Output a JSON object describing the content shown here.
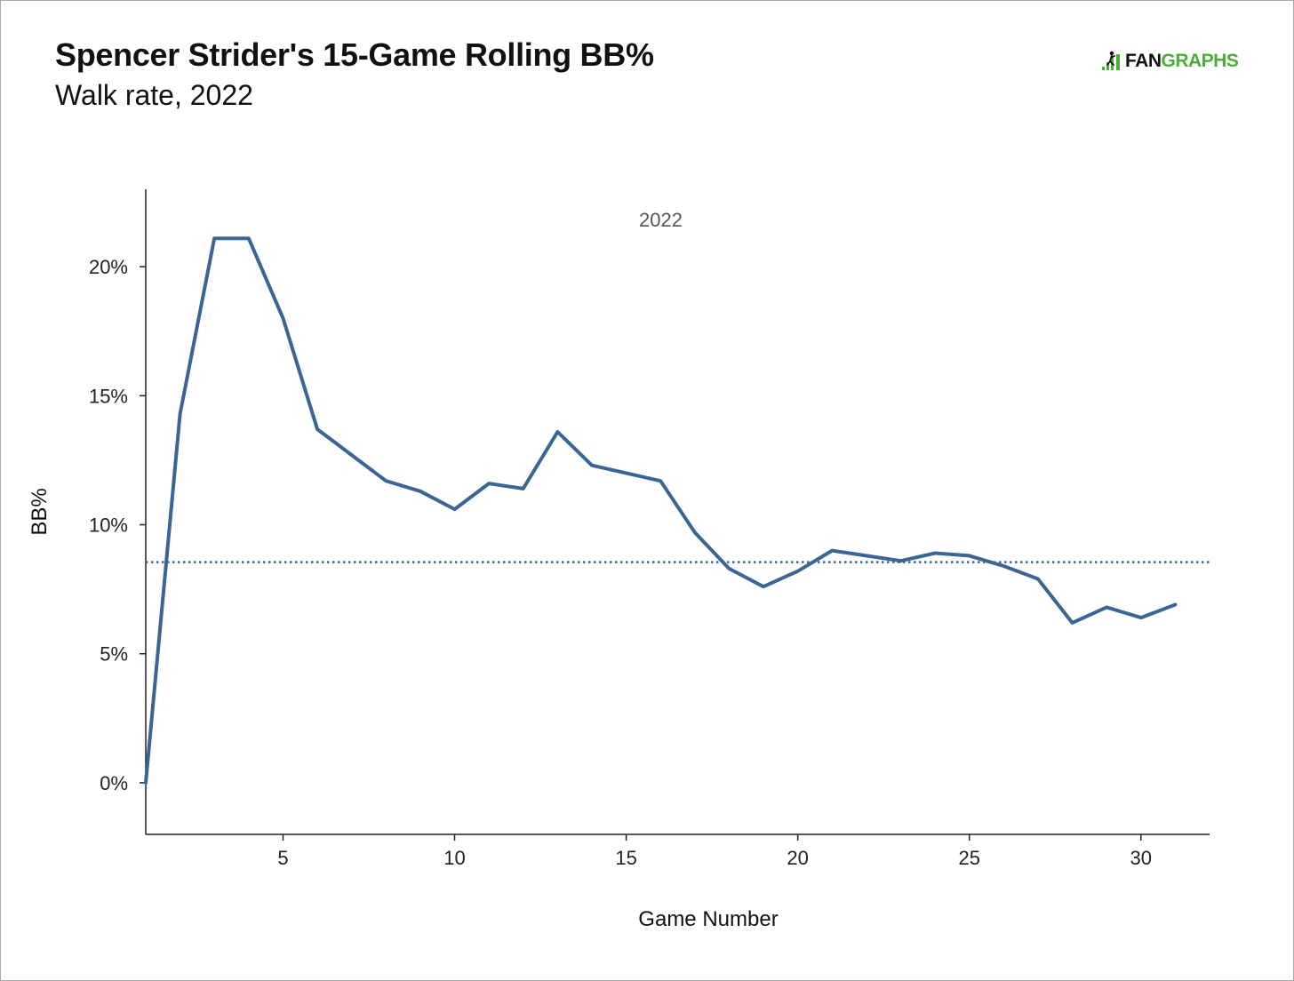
{
  "header": {
    "title": "Spencer Strider's 15-Game Rolling BB%",
    "subtitle": "Walk rate, 2022",
    "logo": {
      "part1": "FAN",
      "part2": "GRAPHS",
      "color_dark": "#111111",
      "color_green": "#4cae3a",
      "icon": "fangraphs-logo-icon"
    }
  },
  "chart_data": {
    "type": "line",
    "title": "Spencer Strider's 15-Game Rolling BB%",
    "subtitle": "Walk rate, 2022",
    "panel_label": "2022",
    "xlabel": "Game Number",
    "ylabel": "BB%",
    "xlim": [
      1,
      32
    ],
    "ylim": [
      -2,
      23
    ],
    "x_ticks": [
      5,
      10,
      15,
      20,
      25,
      30
    ],
    "x_tick_labels": [
      "5",
      "10",
      "15",
      "20",
      "25",
      "30"
    ],
    "y_ticks": [
      0,
      5,
      10,
      15,
      20
    ],
    "y_tick_labels": [
      "0%",
      "5%",
      "10%",
      "15%",
      "20%"
    ],
    "grid": false,
    "series": [
      {
        "color": "#3a6595",
        "x": [
          1,
          2,
          3,
          4,
          5,
          6,
          7,
          8,
          9,
          10,
          11,
          12,
          13,
          14,
          15,
          16,
          17,
          18,
          19,
          20,
          21,
          22,
          23,
          24,
          25,
          26,
          27,
          28,
          29,
          30,
          31
        ],
        "values": [
          0.0,
          14.3,
          21.1,
          21.1,
          18.0,
          13.7,
          12.7,
          11.7,
          11.3,
          10.6,
          11.6,
          11.4,
          13.6,
          12.3,
          12.0,
          11.7,
          9.7,
          8.3,
          7.6,
          8.2,
          9.0,
          8.8,
          8.6,
          8.9,
          8.8,
          8.4,
          7.9,
          6.2,
          6.8,
          6.4,
          6.9
        ]
      }
    ],
    "reference_line": {
      "value": 8.55,
      "style": "dotted",
      "color": "#3a6595"
    }
  }
}
